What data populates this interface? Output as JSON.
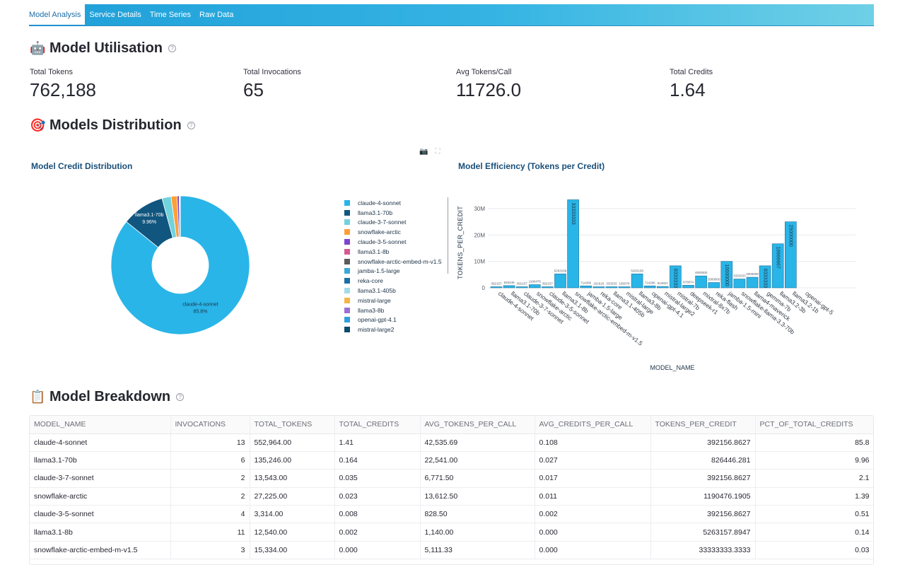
{
  "tabs": [
    "Model Analysis",
    "Service Details",
    "Time Series",
    "Raw Data"
  ],
  "sections": {
    "utilisation": {
      "emoji": "🤖",
      "title": "Model Utilisation"
    },
    "distribution": {
      "emoji": "🎯",
      "title": "Models Distribution"
    },
    "breakdown": {
      "emoji": "📋",
      "title": "Model Breakdown"
    }
  },
  "metrics": [
    {
      "label": "Total Tokens",
      "value": "762,188"
    },
    {
      "label": "Total Invocations",
      "value": "65"
    },
    {
      "label": "Avg Tokens/Call",
      "value": "11726.0"
    },
    {
      "label": "Total Credits",
      "value": "1.64"
    }
  ],
  "chart_data": [
    {
      "type": "pie",
      "title": "Model Credit Distribution",
      "labels": [
        "claude-4-sonnet",
        "llama3.1-70b",
        "claude-3-7-sonnet",
        "snowflake-arctic",
        "claude-3-5-sonnet",
        "llama3.1-8b",
        "snowflake-arctic-embed-m-v1.5",
        "jamba-1.5-large",
        "reka-core",
        "llama3.1-405b",
        "mistral-large",
        "llama3-8b",
        "openai-gpt-4.1",
        "mistral-large2"
      ],
      "values": [
        85.8,
        9.96,
        2.1,
        1.39,
        0.51,
        0.14,
        0.03,
        0.02,
        0.01,
        0.01,
        0.01,
        0.01,
        0.01,
        0.01
      ],
      "colors": [
        "#29b5e8",
        "#11567f",
        "#71d3dc",
        "#ff9f36",
        "#7d44cf",
        "#d45b90",
        "#5b5b5b",
        "#3aa8d8",
        "#1c6ea4",
        "#a3dbe8",
        "#f5b547",
        "#9b6fd6",
        "#2f9fe0",
        "#0e4a6e"
      ],
      "slice_labels": [
        {
          "name": "claude-4-sonnet",
          "pct": "85.8%"
        },
        {
          "name": "llama3.1-70b",
          "pct": "9.96%"
        }
      ],
      "legend": "right"
    },
    {
      "type": "bar",
      "title": "Model Efficiency (Tokens per Credit)",
      "xlabel": "MODEL_NAME",
      "ylabel": "TOKENS_PER_CREDIT",
      "ylim": [
        0,
        34000000
      ],
      "yticks": [
        "0",
        "10M",
        "20M",
        "30M"
      ],
      "categories": [
        "claude-4-sonnet",
        "llama3.1-70b",
        "claude-3-7-sonnet",
        "snowflake-arctic",
        "claude-3-5-sonnet",
        "llama3.1-8b",
        "snowflake-arctic-embed-m-v1.5",
        "jamba-1.5-large",
        "reka-core",
        "llama3.1-405b",
        "mistral-large",
        "llama3-8b",
        "openai-gpt-4.1",
        "mistral-large2",
        "mistral-7b",
        "deepseek-r1",
        "mixtral-8x7b",
        "reka-flash",
        "jamba-1.5-mini",
        "snowflake-llama-3.3-70b",
        "llama4-maverick",
        "gemma-7b",
        "llama3.2-3b",
        "llama3.2-1b",
        "openai-gpt-5"
      ],
      "values": [
        392157,
        826446,
        392157,
        1190476,
        392157,
        5263158,
        33333333,
        714286,
        161616,
        333333,
        156078,
        5263158,
        714286,
        512821,
        8333333,
        970874,
        4500000,
        2000000,
        10000000,
        3333333,
        4000000,
        8333333,
        16666667,
        25000000,
        0
      ],
      "value_labels": [
        "392157",
        "826446",
        "392157",
        "1190476",
        "392157",
        "5263158",
        "33333333",
        "714286",
        "161616",
        "333333",
        "156078",
        "5263158",
        "714286",
        "512821",
        "8333333",
        "970874",
        "4500000",
        "2000000",
        "10000000",
        "3333333",
        "4000000",
        "8333333",
        "16666667",
        "25000000",
        ""
      ],
      "color": "#29b5e8"
    }
  ],
  "table": {
    "columns": [
      "MODEL_NAME",
      "INVOCATIONS",
      "TOTAL_TOKENS",
      "TOTAL_CREDITS",
      "AVG_TOKENS_PER_CALL",
      "AVG_CREDITS_PER_CALL",
      "TOKENS_PER_CREDIT",
      "PCT_OF_TOTAL_CREDITS"
    ],
    "rows": [
      [
        "claude-4-sonnet",
        "13",
        "552,964.00",
        "1.41",
        "42,535.69",
        "0.108",
        "392156.8627",
        "85.8"
      ],
      [
        "llama3.1-70b",
        "6",
        "135,246.00",
        "0.164",
        "22,541.00",
        "0.027",
        "826446.281",
        "9.96"
      ],
      [
        "claude-3-7-sonnet",
        "2",
        "13,543.00",
        "0.035",
        "6,771.50",
        "0.017",
        "392156.8627",
        "2.1"
      ],
      [
        "snowflake-arctic",
        "2",
        "27,225.00",
        "0.023",
        "13,612.50",
        "0.011",
        "1190476.1905",
        "1.39"
      ],
      [
        "claude-3-5-sonnet",
        "4",
        "3,314.00",
        "0.008",
        "828.50",
        "0.002",
        "392156.8627",
        "0.51"
      ],
      [
        "llama3.1-8b",
        "11",
        "12,540.00",
        "0.002",
        "1,140.00",
        "0.000",
        "5263157.8947",
        "0.14"
      ],
      [
        "snowflake-arctic-embed-m-v1.5",
        "3",
        "15,334.00",
        "0.000",
        "5,111.33",
        "0.000",
        "33333333.3333",
        "0.03"
      ]
    ]
  }
}
